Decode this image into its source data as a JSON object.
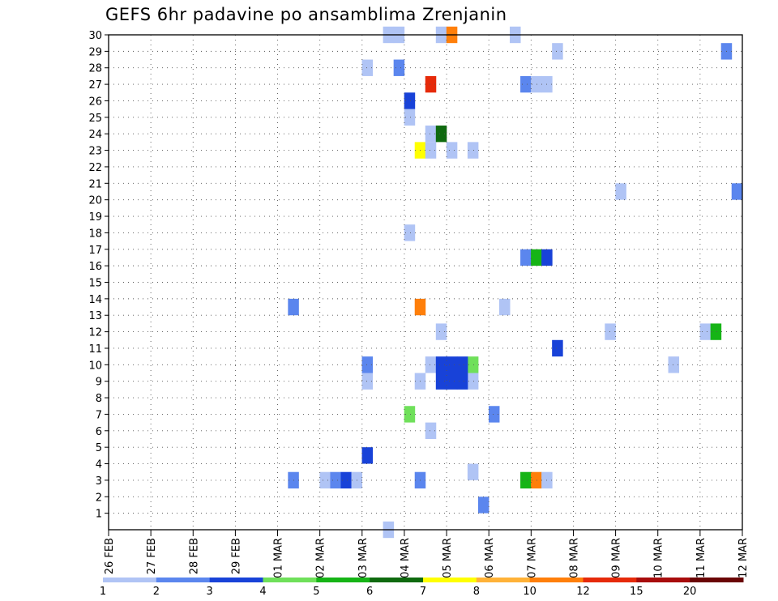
{
  "title": "GEFS 6hr padavine po ansamblima Zrenjanin",
  "chart_data": {
    "type": "heatmap",
    "title": "GEFS 6hr padavine po ansamblima Zrenjanin",
    "x_tick_labels": [
      "26 FEB",
      "27 FEB",
      "28 FEB",
      "29 FEB",
      "01 MAR",
      "02 MAR",
      "03 MAR",
      "04 MAR",
      "05 MAR",
      "06 MAR",
      "07 MAR",
      "08 MAR",
      "09 MAR",
      "10 MAR",
      "11 MAR",
      "12 MAR"
    ],
    "y_tick_labels": [
      "1",
      "2",
      "3",
      "4",
      "5",
      "6",
      "7",
      "8",
      "9",
      "10",
      "11",
      "12",
      "13",
      "14",
      "15",
      "16",
      "17",
      "18",
      "19",
      "20",
      "21",
      "22",
      "23",
      "24",
      "25",
      "26",
      "27",
      "28",
      "29",
      "30"
    ],
    "xlim": [
      0,
      60
    ],
    "ylim": [
      0,
      30
    ],
    "grid": true,
    "colorbar": {
      "labels": [
        "1",
        "2",
        "3",
        "4",
        "5",
        "6",
        "7",
        "8",
        "10",
        "12",
        "15",
        "20"
      ],
      "colors": [
        "#b0c4f5",
        "#5b86ee",
        "#1842d8",
        "#6fe05a",
        "#16b416",
        "#0f6a0f",
        "#ffff00",
        "#ffb238",
        "#ff7f0a",
        "#e62a0a",
        "#a80c0c",
        "#6a0505"
      ]
    },
    "cells": [
      {
        "t": 26.5,
        "m": 0,
        "c": 0
      },
      {
        "t": 35.5,
        "m": 1.5,
        "c": 1
      },
      {
        "t": 17.5,
        "m": 3,
        "c": 1
      },
      {
        "t": 20.5,
        "m": 3,
        "c": 0
      },
      {
        "t": 21.5,
        "m": 3,
        "c": 1
      },
      {
        "t": 22.5,
        "m": 3,
        "c": 2
      },
      {
        "t": 23.5,
        "m": 3,
        "c": 0
      },
      {
        "t": 29.5,
        "m": 3,
        "c": 1
      },
      {
        "t": 39.5,
        "m": 3,
        "c": 4
      },
      {
        "t": 40.5,
        "m": 3,
        "c": 8
      },
      {
        "t": 41.5,
        "m": 3,
        "c": 0
      },
      {
        "t": 34.5,
        "m": 3.5,
        "c": 0
      },
      {
        "t": 24.5,
        "m": 4.5,
        "c": 2
      },
      {
        "t": 30.5,
        "m": 6,
        "c": 0
      },
      {
        "t": 28.5,
        "m": 7,
        "c": 3
      },
      {
        "t": 36.5,
        "m": 7,
        "c": 1
      },
      {
        "t": 24.5,
        "m": 9,
        "c": 0
      },
      {
        "t": 29.5,
        "m": 9,
        "c": 0
      },
      {
        "t": 34.5,
        "m": 9,
        "c": 0
      },
      {
        "t": 24.5,
        "m": 10,
        "c": 1
      },
      {
        "t": 30.5,
        "m": 10,
        "c": 0
      },
      {
        "t": 34.5,
        "m": 10,
        "c": 3
      },
      {
        "t": 53.5,
        "m": 10,
        "c": 0
      },
      {
        "t": 31.5,
        "m": 9.5,
        "c": 2,
        "h": 2
      },
      {
        "t": 32.5,
        "m": 9.5,
        "c": 2,
        "h": 2
      },
      {
        "t": 33.5,
        "m": 9.5,
        "c": 2,
        "h": 2
      },
      {
        "t": 42.5,
        "m": 11,
        "c": 2
      },
      {
        "t": 31.5,
        "m": 12,
        "c": 0
      },
      {
        "t": 47.5,
        "m": 12,
        "c": 0
      },
      {
        "t": 56.5,
        "m": 12,
        "c": 0
      },
      {
        "t": 57.5,
        "m": 12,
        "c": 4
      },
      {
        "t": 17.5,
        "m": 13.5,
        "c": 1
      },
      {
        "t": 29.5,
        "m": 13.5,
        "c": 8
      },
      {
        "t": 37.5,
        "m": 13.5,
        "c": 0
      },
      {
        "t": 39.5,
        "m": 16.5,
        "c": 1
      },
      {
        "t": 40.5,
        "m": 16.5,
        "c": 4
      },
      {
        "t": 41.5,
        "m": 16.5,
        "c": 2
      },
      {
        "t": 28.5,
        "m": 18,
        "c": 0
      },
      {
        "t": 48.5,
        "m": 20.5,
        "c": 0
      },
      {
        "t": 59.5,
        "m": 20.5,
        "c": 1
      },
      {
        "t": 29.5,
        "m": 23,
        "c": 6
      },
      {
        "t": 30.5,
        "m": 23,
        "c": 0
      },
      {
        "t": 32.5,
        "m": 23,
        "c": 0
      },
      {
        "t": 34.5,
        "m": 23,
        "c": 0
      },
      {
        "t": 30.5,
        "m": 24,
        "c": 0
      },
      {
        "t": 31.5,
        "m": 24,
        "c": 5
      },
      {
        "t": 28.5,
        "m": 25,
        "c": 0
      },
      {
        "t": 28.5,
        "m": 26,
        "c": 2
      },
      {
        "t": 30.5,
        "m": 27,
        "c": 9
      },
      {
        "t": 39.5,
        "m": 27,
        "c": 1
      },
      {
        "t": 40.5,
        "m": 27,
        "c": 0
      },
      {
        "t": 41.5,
        "m": 27,
        "c": 0
      },
      {
        "t": 24.5,
        "m": 28,
        "c": 0
      },
      {
        "t": 27.5,
        "m": 28,
        "c": 1
      },
      {
        "t": 42.5,
        "m": 29,
        "c": 0
      },
      {
        "t": 58.5,
        "m": 29,
        "c": 1
      },
      {
        "t": 26.5,
        "m": 30,
        "c": 0
      },
      {
        "t": 27.5,
        "m": 30,
        "c": 0
      },
      {
        "t": 31.5,
        "m": 30,
        "c": 0
      },
      {
        "t": 32.5,
        "m": 30,
        "c": 8
      },
      {
        "t": 38.5,
        "m": 30,
        "c": 0
      }
    ]
  }
}
